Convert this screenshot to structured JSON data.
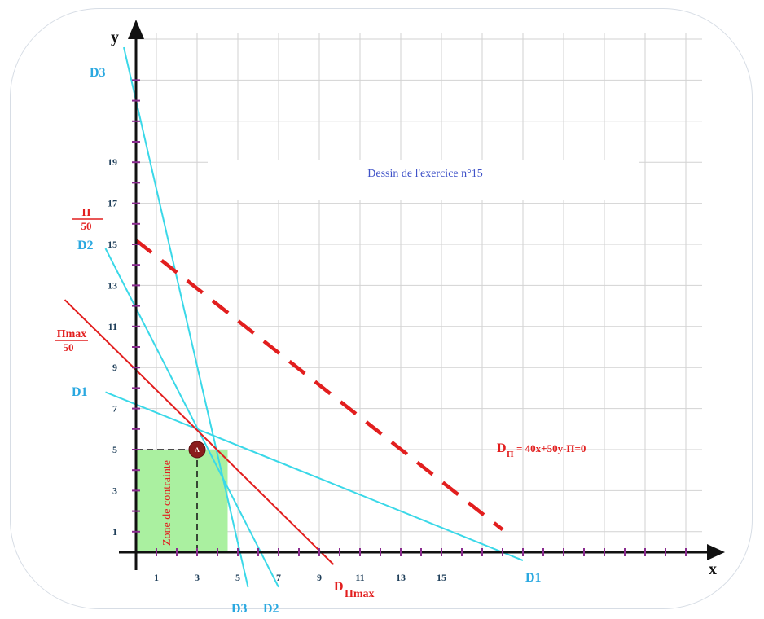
{
  "chart_data": {
    "type": "line",
    "title": "Dessin de l'exercice n°15",
    "xlabel": "x",
    "ylabel": "y",
    "xlim": [
      0,
      29
    ],
    "ylim": [
      0,
      25
    ],
    "x_tick_labels": [
      "1",
      "3",
      "5",
      "7",
      "9",
      "11",
      "13",
      "15"
    ],
    "y_tick_labels": [
      "1",
      "3",
      "5",
      "7",
      "9",
      "11",
      "13",
      "15",
      "17",
      "19"
    ],
    "grid": true,
    "lines": [
      {
        "name": "D1",
        "color": "#3ad8e8",
        "x": [
          -1.5,
          19.0
        ],
        "y": [
          7.8,
          -0.4
        ],
        "labels": [
          "D1",
          "D1"
        ]
      },
      {
        "name": "D2",
        "color": "#3ad8e8",
        "x": [
          -1.5,
          7.0
        ],
        "y": [
          14.8,
          -1.7
        ],
        "labels": [
          "D2",
          "D2"
        ]
      },
      {
        "name": "D3",
        "color": "#3ad8e8",
        "x": [
          -0.6,
          5.5
        ],
        "y": [
          24.6,
          -1.7
        ],
        "labels": [
          "D3",
          "D3"
        ]
      },
      {
        "name": "D_Πmax",
        "color": "#e21e1e",
        "x": [
          -3.5,
          9.7
        ],
        "y": [
          12.3,
          -0.6
        ]
      },
      {
        "name": "D_Π",
        "color": "#e21e1e",
        "dashed": true,
        "x": [
          0,
          18.0
        ],
        "y": [
          15.2,
          1.1
        ]
      }
    ],
    "point": {
      "name": "A",
      "x": 3,
      "y": 5
    },
    "zone": {
      "label": "Zone de contrainte",
      "x": [
        0,
        4.5
      ],
      "y": [
        0,
        5
      ]
    },
    "annotations": {
      "dpi_equation": "= 40x+50y-Π=0",
      "dpi_prefix": "D",
      "dpi_sub": "Π",
      "dpimax_prefix": "D",
      "dpimax_sub": "Πmax",
      "pi_over_50_num": "Π",
      "pi_over_50_den": "50",
      "pimax_over_50_num": "Πmax",
      "pimax_over_50_den": "50"
    },
    "colors": {
      "accent_line": "#3ad8e8",
      "objective": "#e21e1e",
      "zone_fill": "#aaf0a0",
      "axis": "#111111",
      "tick": "#8a2c8f",
      "grid": "#d2d2d2"
    }
  }
}
